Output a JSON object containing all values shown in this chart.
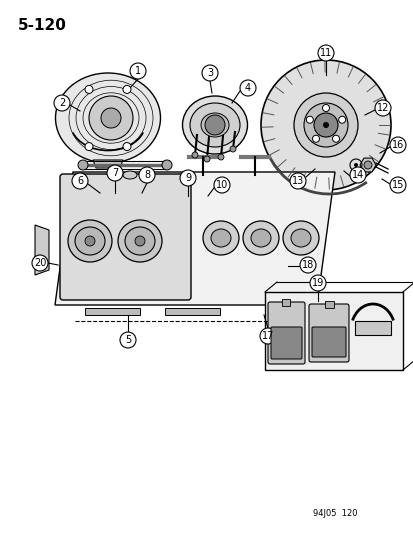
{
  "title": "5-120",
  "footer": "94J05  120",
  "bg_color": "#ffffff",
  "line_color": "#000000",
  "figsize": [
    4.14,
    5.33
  ],
  "dpi": 100
}
